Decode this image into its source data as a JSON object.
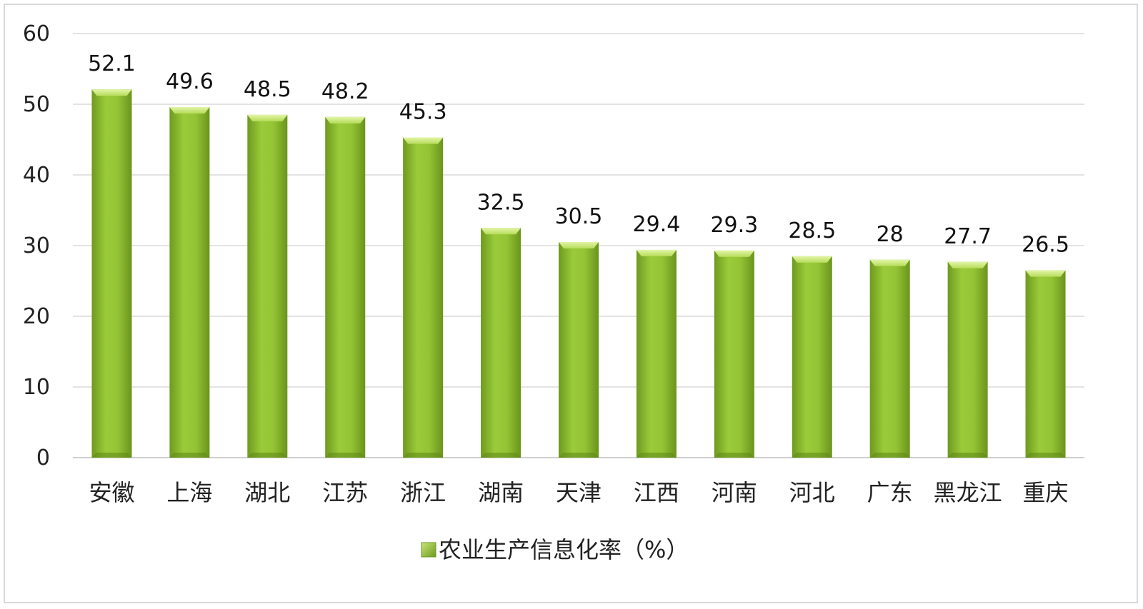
{
  "chart_data": {
    "type": "bar",
    "title": "",
    "xlabel": "",
    "ylabel": "",
    "ylim": [
      0,
      60
    ],
    "yticks": [
      0,
      10,
      20,
      30,
      40,
      50,
      60
    ],
    "grid": true,
    "legend_position": "bottom",
    "categories": [
      "安徽",
      "上海",
      "湖北",
      "江苏",
      "浙江",
      "湖南",
      "天津",
      "江西",
      "河南",
      "河北",
      "广东",
      "黑龙江",
      "重庆"
    ],
    "series": [
      {
        "name": "农业生产信息化率（%）",
        "values": [
          52.1,
          49.6,
          48.5,
          48.2,
          45.3,
          32.5,
          30.5,
          29.4,
          29.3,
          28.5,
          28,
          27.7,
          26.5
        ],
        "color": "#8dbb2c"
      }
    ]
  }
}
